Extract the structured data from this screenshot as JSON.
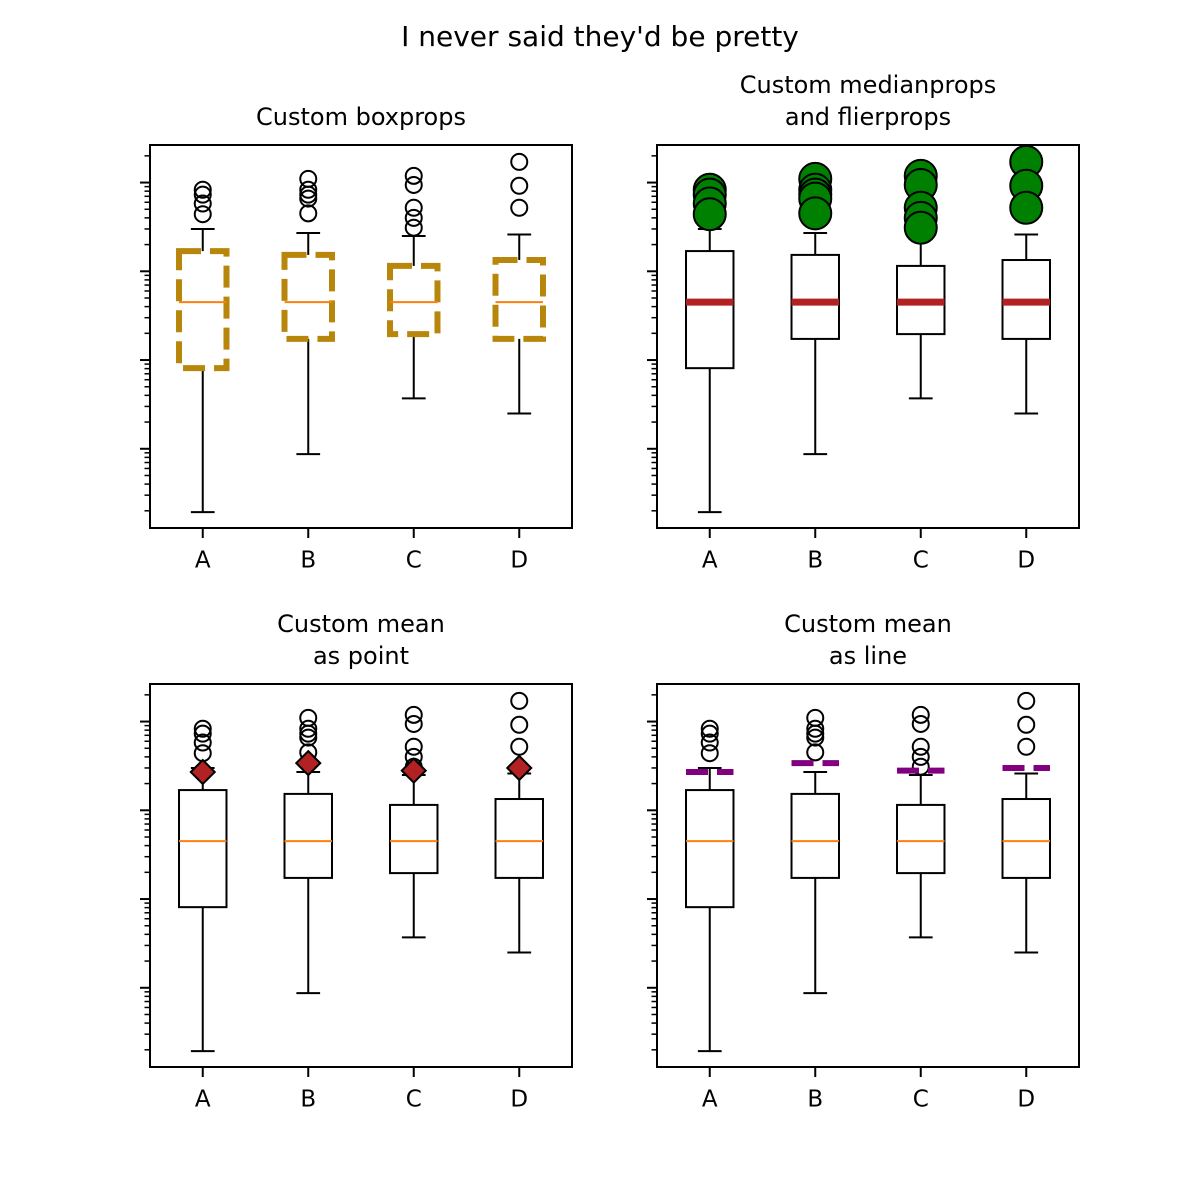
{
  "title": "I never said they'd be pretty",
  "chart_data": [
    {
      "type": "box",
      "title": [
        "Custom boxprops"
      ],
      "categories": [
        "A",
        "B",
        "C",
        "D"
      ],
      "yscale": "log",
      "ylim": [
        0.0128,
        265
      ],
      "yticks": [
        0.1,
        1,
        10,
        100
      ],
      "minor_yticks": [
        0.02,
        0.03,
        0.04,
        0.05,
        0.06,
        0.07,
        0.08,
        0.09,
        0.2,
        0.3,
        0.4,
        0.5,
        0.6,
        0.7,
        0.8,
        0.9,
        2,
        3,
        4,
        5,
        6,
        7,
        8,
        9,
        20,
        30,
        40,
        50,
        60,
        70,
        80,
        90,
        200
      ],
      "box_style": {
        "color": "#b8860b",
        "width": 6,
        "dashed": true
      },
      "median_style": {
        "color": "#ff7f0e",
        "width": 2
      },
      "flier_style": {
        "fill": "none",
        "radius": 8
      },
      "boxes": [
        {
          "whislo": 0.0193,
          "q1": 0.81,
          "med": 4.5,
          "q3": 16.9,
          "whishi": 30,
          "fliers": [
            83,
            73,
            58,
            44
          ]
        },
        {
          "whislo": 0.087,
          "q1": 1.73,
          "med": 4.5,
          "q3": 15.3,
          "whishi": 27,
          "fliers": [
            110,
            83,
            73,
            66,
            45
          ]
        },
        {
          "whislo": 0.37,
          "q1": 1.96,
          "med": 4.5,
          "q3": 11.5,
          "whishi": 25,
          "fliers": [
            119,
            94,
            52,
            40,
            31
          ]
        },
        {
          "whislo": 0.25,
          "q1": 1.73,
          "med": 4.5,
          "q3": 13.4,
          "whishi": 26,
          "fliers": [
            171,
            92,
            52
          ]
        }
      ]
    },
    {
      "type": "box",
      "title": [
        "Custom medianprops",
        "and flierprops"
      ],
      "categories": [
        "A",
        "B",
        "C",
        "D"
      ],
      "yscale": "log",
      "ylim": [
        0.0128,
        265
      ],
      "yticks": [
        0.1,
        1,
        10,
        100
      ],
      "minor_yticks": [
        0.02,
        0.03,
        0.04,
        0.05,
        0.06,
        0.07,
        0.08,
        0.09,
        0.2,
        0.3,
        0.4,
        0.5,
        0.6,
        0.7,
        0.8,
        0.9,
        2,
        3,
        4,
        5,
        6,
        7,
        8,
        9,
        20,
        30,
        40,
        50,
        60,
        70,
        80,
        90,
        200
      ],
      "box_style": {
        "color": "#000000",
        "width": 2,
        "dashed": false
      },
      "median_style": {
        "color": "#b22222",
        "width": 7
      },
      "flier_style": {
        "fill": "#008000",
        "radius": 16
      },
      "boxes": [
        {
          "whislo": 0.0193,
          "q1": 0.81,
          "med": 4.5,
          "q3": 16.9,
          "whishi": 30,
          "fliers": [
            83,
            73,
            58,
            44
          ]
        },
        {
          "whislo": 0.087,
          "q1": 1.73,
          "med": 4.5,
          "q3": 15.3,
          "whishi": 27,
          "fliers": [
            110,
            83,
            73,
            66,
            45
          ]
        },
        {
          "whislo": 0.37,
          "q1": 1.96,
          "med": 4.5,
          "q3": 11.5,
          "whishi": 25,
          "fliers": [
            119,
            94,
            52,
            40,
            31
          ]
        },
        {
          "whislo": 0.25,
          "q1": 1.73,
          "med": 4.5,
          "q3": 13.4,
          "whishi": 26,
          "fliers": [
            171,
            92,
            52
          ]
        }
      ]
    },
    {
      "type": "box",
      "title": [
        "Custom mean",
        "as point"
      ],
      "categories": [
        "A",
        "B",
        "C",
        "D"
      ],
      "yscale": "log",
      "ylim": [
        0.0128,
        265
      ],
      "yticks": [
        0.1,
        1,
        10,
        100
      ],
      "minor_yticks": [
        0.02,
        0.03,
        0.04,
        0.05,
        0.06,
        0.07,
        0.08,
        0.09,
        0.2,
        0.3,
        0.4,
        0.5,
        0.6,
        0.7,
        0.8,
        0.9,
        2,
        3,
        4,
        5,
        6,
        7,
        8,
        9,
        20,
        30,
        40,
        50,
        60,
        70,
        80,
        90,
        200
      ],
      "box_style": {
        "color": "#000000",
        "width": 2,
        "dashed": false
      },
      "median_style": {
        "color": "#ff7f0e",
        "width": 2
      },
      "flier_style": {
        "fill": "none",
        "radius": 8
      },
      "mean_style": {
        "kind": "point",
        "color": "#b22222"
      },
      "boxes": [
        {
          "whislo": 0.0193,
          "q1": 0.81,
          "med": 4.5,
          "q3": 16.9,
          "whishi": 30,
          "fliers": [
            83,
            73,
            58,
            44
          ],
          "mean": 27
        },
        {
          "whislo": 0.087,
          "q1": 1.73,
          "med": 4.5,
          "q3": 15.3,
          "whishi": 27,
          "fliers": [
            110,
            83,
            73,
            66,
            45
          ],
          "mean": 34
        },
        {
          "whislo": 0.37,
          "q1": 1.96,
          "med": 4.5,
          "q3": 11.5,
          "whishi": 25,
          "fliers": [
            119,
            94,
            52,
            40,
            31
          ],
          "mean": 28
        },
        {
          "whislo": 0.25,
          "q1": 1.73,
          "med": 4.5,
          "q3": 13.4,
          "whishi": 26,
          "fliers": [
            171,
            92,
            52
          ],
          "mean": 30
        }
      ]
    },
    {
      "type": "box",
      "title": [
        "Custom mean",
        "as line"
      ],
      "categories": [
        "A",
        "B",
        "C",
        "D"
      ],
      "yscale": "log",
      "ylim": [
        0.0128,
        265
      ],
      "yticks": [
        0.1,
        1,
        10,
        100
      ],
      "minor_yticks": [
        0.02,
        0.03,
        0.04,
        0.05,
        0.06,
        0.07,
        0.08,
        0.09,
        0.2,
        0.3,
        0.4,
        0.5,
        0.6,
        0.7,
        0.8,
        0.9,
        2,
        3,
        4,
        5,
        6,
        7,
        8,
        9,
        20,
        30,
        40,
        50,
        60,
        70,
        80,
        90,
        200
      ],
      "box_style": {
        "color": "#000000",
        "width": 2,
        "dashed": false
      },
      "median_style": {
        "color": "#ff7f0e",
        "width": 2
      },
      "flier_style": {
        "fill": "none",
        "radius": 8
      },
      "mean_style": {
        "kind": "line",
        "color": "#800080"
      },
      "boxes": [
        {
          "whislo": 0.0193,
          "q1": 0.81,
          "med": 4.5,
          "q3": 16.9,
          "whishi": 30,
          "fliers": [
            83,
            73,
            58,
            44
          ],
          "mean": 27
        },
        {
          "whislo": 0.087,
          "q1": 1.73,
          "med": 4.5,
          "q3": 15.3,
          "whishi": 27,
          "fliers": [
            110,
            83,
            73,
            66,
            45
          ],
          "mean": 34
        },
        {
          "whislo": 0.37,
          "q1": 1.96,
          "med": 4.5,
          "q3": 11.5,
          "whishi": 25,
          "fliers": [
            119,
            94,
            52,
            40,
            31
          ],
          "mean": 28
        },
        {
          "whislo": 0.25,
          "q1": 1.73,
          "med": 4.5,
          "q3": 13.4,
          "whishi": 26,
          "fliers": [
            171,
            92,
            52
          ],
          "mean": 30
        }
      ]
    }
  ]
}
